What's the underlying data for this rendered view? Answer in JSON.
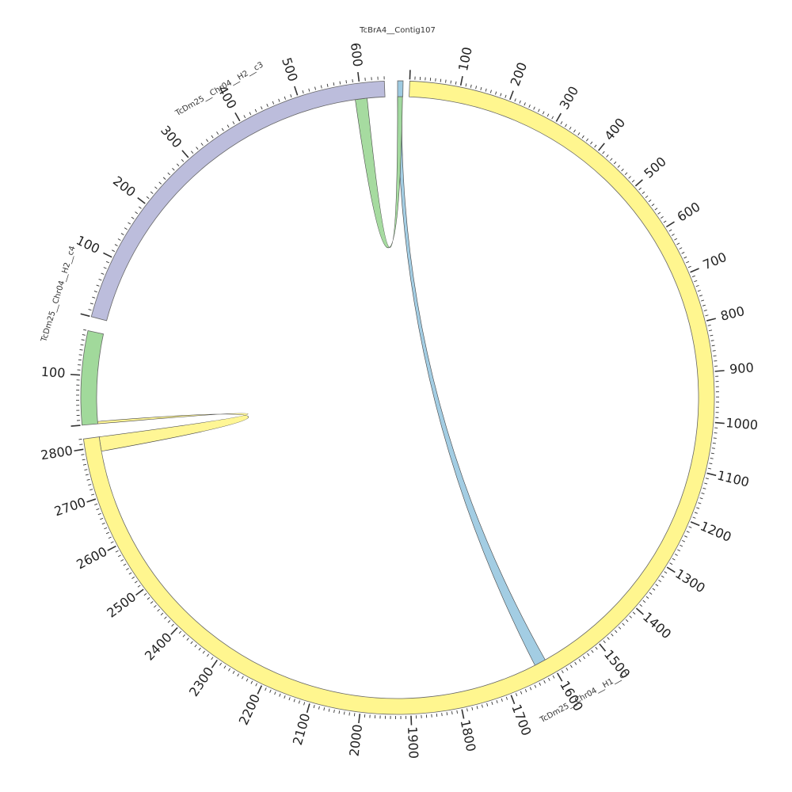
{
  "chart_data": {
    "type": "chord",
    "segments": [
      {
        "id": "contig107",
        "name": "TcBrA4__Contig107",
        "length": 30,
        "color": "#9ecae1"
      },
      {
        "id": "h1c1",
        "name": "TcDm25__Chr04__H1__c1",
        "length": 2820,
        "color": "#fff68f"
      },
      {
        "id": "h2c4",
        "name": "TcDm25__Chr04__H2__c4",
        "length": 190,
        "color": "#a1d99b"
      },
      {
        "id": "h2c3",
        "name": "TcDm25__Chr04__H2__c3",
        "length": 640,
        "color": "#bcbddc"
      }
    ],
    "links": [
      {
        "from_segment": "contig107",
        "from_start": 0,
        "from_end": 24,
        "to_segment": "h1c1",
        "to_start": 1608,
        "to_end": 1632,
        "color": "#9ecae1"
      },
      {
        "from_segment": "h2c4",
        "from_start": 0,
        "from_end": 5,
        "to_segment": "h1c1",
        "to_start": 2790,
        "to_end": 2820,
        "color": "#fff68f"
      },
      {
        "from_segment": "h2c3",
        "from_start": 590,
        "from_end": 610,
        "to_segment": "contig107",
        "to_start": 0,
        "to_end": 28,
        "color": "#a1d99b"
      }
    ],
    "ticks": {
      "contig107": [],
      "h1c1": [
        "100",
        "200",
        "300",
        "400",
        "500",
        "600",
        "700",
        "800",
        "900",
        "1000",
        "1100",
        "1200",
        "1300",
        "1400",
        "1500",
        "1600",
        "1700",
        "1800",
        "1900",
        "2000",
        "2100",
        "2200",
        "2300",
        "2400",
        "2500",
        "2600",
        "2700",
        "2800"
      ],
      "h2c4": [
        "100"
      ],
      "h2c3": [
        "100",
        "200",
        "300",
        "400",
        "500",
        "600"
      ]
    }
  }
}
